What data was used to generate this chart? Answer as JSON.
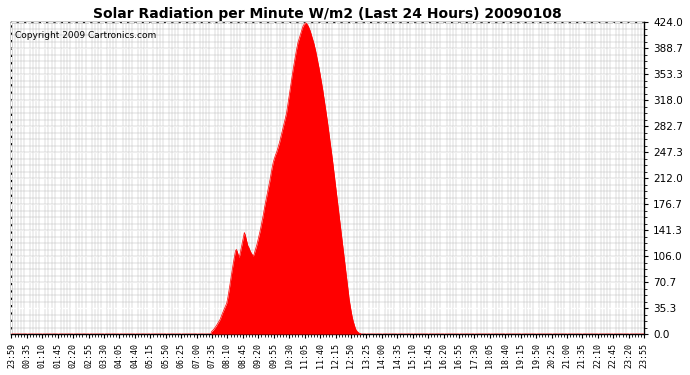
{
  "title": "Solar Radiation per Minute W/m2 (Last 24 Hours) 20090108",
  "copyright": "Copyright 2009 Cartronics.com",
  "bg_color": "#ffffff",
  "plot_bg_color": "#ffffff",
  "fill_color": "#ff0000",
  "line_color": "#ff0000",
  "dashed_line_color": "#ff0000",
  "grid_color": "#b0b0b0",
  "dashed_grid_color": "#ffffff",
  "yticks": [
    0.0,
    35.3,
    70.7,
    106.0,
    141.3,
    176.7,
    212.0,
    247.3,
    282.7,
    318.0,
    353.3,
    388.7,
    424.0
  ],
  "ymax": 424.0,
  "ymin": 0.0,
  "xlabel_fontsize": 6,
  "ylabel_fontsize": 7.5,
  "title_fontsize": 10,
  "copyright_fontsize": 6.5,
  "tick_labels": [
    "23:59",
    "00:35",
    "01:10",
    "01:45",
    "02:20",
    "02:55",
    "03:30",
    "04:05",
    "04:40",
    "05:15",
    "05:50",
    "06:25",
    "07:00",
    "07:35",
    "08:10",
    "08:45",
    "09:20",
    "09:55",
    "10:30",
    "11:05",
    "11:40",
    "12:15",
    "12:50",
    "13:25",
    "14:00",
    "14:35",
    "15:10",
    "15:45",
    "16:20",
    "16:55",
    "17:30",
    "18:05",
    "18:40",
    "19:15",
    "19:50",
    "20:25",
    "21:00",
    "21:35",
    "22:10",
    "22:45",
    "23:20",
    "23:55"
  ],
  "solar_data_x": [
    0,
    454,
    455,
    460,
    465,
    470,
    475,
    480,
    485,
    490,
    492,
    494,
    496,
    498,
    500,
    502,
    504,
    506,
    508,
    510,
    512,
    514,
    516,
    518,
    520,
    522,
    524,
    526,
    528,
    530,
    532,
    534,
    536,
    538,
    540,
    542,
    544,
    546,
    548,
    550,
    552,
    554,
    556,
    558,
    560,
    562,
    564,
    566,
    568,
    570,
    572,
    574,
    576,
    578,
    580,
    582,
    584,
    586,
    588,
    590,
    592,
    594,
    596,
    598,
    600,
    602,
    604,
    606,
    608,
    610,
    612,
    614,
    616,
    618,
    620,
    622,
    624,
    626,
    628,
    630,
    632,
    634,
    636,
    638,
    640,
    642,
    644,
    646,
    648,
    650,
    652,
    654,
    656,
    658,
    660,
    662,
    664,
    666,
    668,
    670,
    672,
    674,
    676,
    678,
    680,
    682,
    684,
    686,
    688,
    690,
    692,
    694,
    696,
    698,
    700,
    702,
    704,
    706,
    708,
    710,
    712,
    714,
    716,
    718,
    720,
    722,
    724,
    726,
    728,
    730,
    732,
    734,
    736,
    738,
    740,
    742,
    744,
    746,
    748,
    750,
    752,
    754,
    756,
    758,
    760,
    762,
    764,
    766,
    768,
    770,
    772,
    774,
    776,
    778,
    780,
    782,
    784,
    786,
    788,
    790,
    792,
    794,
    796,
    798,
    800,
    802,
    804,
    806,
    808,
    810,
    812,
    814,
    816,
    818,
    820,
    822,
    824,
    826,
    828,
    830,
    832,
    834,
    836,
    838,
    840,
    842,
    844,
    846,
    848,
    850,
    852,
    854,
    856,
    858,
    860,
    862,
    864,
    866,
    868,
    870,
    872,
    874,
    876,
    878,
    880,
    882,
    884,
    886,
    888,
    890,
    892,
    894,
    896,
    898,
    900,
    902,
    904,
    906,
    908,
    910,
    912,
    914,
    916,
    918,
    920,
    922,
    924,
    926,
    928,
    930,
    932,
    934,
    936,
    938,
    940,
    942,
    944,
    946,
    948,
    950,
    952,
    954,
    956,
    958,
    960,
    962,
    964,
    966,
    968,
    970,
    972,
    974,
    976,
    978,
    980,
    982,
    984,
    986,
    988,
    990,
    992,
    994,
    996,
    998,
    1000,
    1440
  ],
  "solar_data_y": [
    0,
    0,
    3,
    6,
    10,
    15,
    20,
    28,
    35,
    42,
    48,
    55,
    62,
    70,
    78,
    86,
    93,
    100,
    107,
    113,
    115,
    112,
    108,
    104,
    108,
    114,
    120,
    126,
    132,
    138,
    135,
    130,
    125,
    120,
    118,
    115,
    112,
    110,
    108,
    106,
    108,
    112,
    116,
    120,
    125,
    130,
    135,
    140,
    146,
    152,
    158,
    165,
    172,
    178,
    184,
    190,
    196,
    202,
    208,
    215,
    222,
    228,
    234,
    238,
    242,
    245,
    248,
    252,
    256,
    260,
    265,
    270,
    275,
    280,
    285,
    290,
    295,
    300,
    308,
    316,
    324,
    332,
    340,
    348,
    356,
    363,
    370,
    377,
    384,
    390,
    396,
    400,
    404,
    408,
    412,
    416,
    419,
    421,
    422,
    423,
    422,
    420,
    418,
    415,
    412,
    408,
    404,
    400,
    396,
    391,
    386,
    380,
    374,
    368,
    362,
    355,
    348,
    341,
    334,
    326,
    318,
    310,
    302,
    294,
    285,
    276,
    267,
    258,
    249,
    240,
    230,
    220,
    210,
    200,
    190,
    180,
    170,
    160,
    150,
    140,
    130,
    120,
    110,
    100,
    90,
    80,
    70,
    60,
    50,
    42,
    35,
    28,
    22,
    17,
    13,
    9,
    6,
    4,
    3,
    2,
    1,
    1,
    0,
    0,
    0,
    0,
    0,
    0,
    0,
    0,
    0,
    0,
    0,
    0,
    0,
    0,
    0,
    0,
    0,
    0,
    0,
    0,
    0,
    0,
    0,
    0,
    0,
    0,
    0,
    0,
    0,
    0,
    0,
    0,
    0,
    0,
    0,
    0,
    0,
    0,
    0,
    0,
    0,
    0,
    0,
    0,
    0,
    0,
    0,
    0,
    0,
    0,
    0,
    0,
    0,
    0,
    0,
    0,
    0,
    0,
    0,
    0,
    0,
    0,
    0,
    0,
    0,
    0,
    0,
    0,
    0,
    0,
    0,
    0,
    0,
    0,
    0,
    0,
    0,
    0,
    0,
    0,
    0,
    0,
    0,
    0,
    0,
    0,
    0,
    0,
    0,
    0,
    0,
    0,
    0,
    0,
    0,
    0,
    0,
    0,
    0,
    0,
    0,
    0,
    0,
    0
  ]
}
